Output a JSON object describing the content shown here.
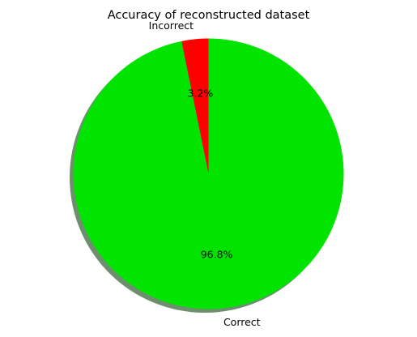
{
  "chart_data": {
    "type": "pie",
    "title": "Accuracy of reconstructed dataset",
    "slices": [
      {
        "label": "Incorrect",
        "value": 3.2,
        "percent_label": "3.2%",
        "color": "#ff0000"
      },
      {
        "label": "Correct",
        "value": 96.8,
        "percent_label": "96.8%",
        "color": "#00e400"
      }
    ],
    "start_angle_deg": 90,
    "direction": "counterclockwise",
    "shadow": true,
    "shadow_color": "#6e8f6e",
    "legend": "none"
  }
}
